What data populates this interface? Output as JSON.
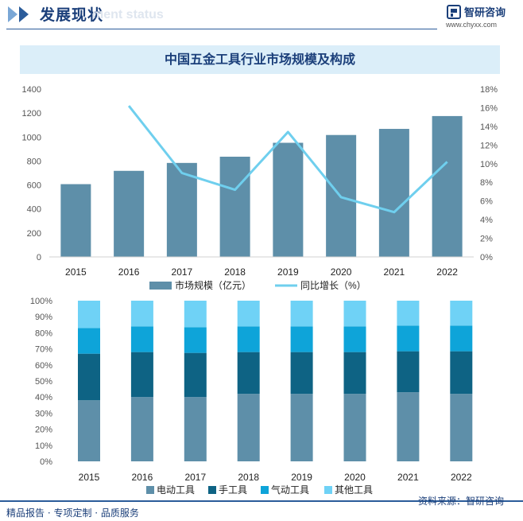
{
  "header": {
    "section_title": "发展现状",
    "section_subtitle_ghost": "ment status",
    "brand_name": "智研咨询",
    "brand_url": "www.chyxx.com"
  },
  "chart_title": "中国五金工具行业市场规模及构成",
  "colors": {
    "bar_market": "#5e8fa9",
    "line_growth": "#6fcfee",
    "electric": "#5e8fa9",
    "hand": "#0e6384",
    "pneumatic": "#0ea4d9",
    "other": "#6fd2f6",
    "title_band": "#dbeef9",
    "brand": "#1b3f7a"
  },
  "chart_data": [
    {
      "type": "bar",
      "categories": [
        "2015",
        "2016",
        "2017",
        "2018",
        "2019",
        "2020",
        "2021",
        "2022"
      ],
      "series": [
        {
          "name": "市场规模（亿元）",
          "type": "bar",
          "axis": "left",
          "values": [
            607,
            718,
            784,
            836,
            952,
            1017,
            1068,
            1175
          ]
        },
        {
          "name": "同比增长（%）",
          "type": "line",
          "axis": "right",
          "values": [
            null,
            16.2,
            9.0,
            7.2,
            13.4,
            6.4,
            4.8,
            10.2
          ]
        }
      ],
      "ylim": [
        0,
        1400
      ],
      "yticks": [
        "0",
        "200",
        "400",
        "600",
        "800",
        "1000",
        "1200",
        "1400"
      ],
      "y2lim": [
        0,
        18
      ],
      "y2ticks": [
        "0%",
        "2%",
        "4%",
        "6%",
        "8%",
        "10%",
        "12%",
        "14%",
        "16%",
        "18%"
      ],
      "legend_position": "bottom"
    },
    {
      "type": "bar",
      "stacked": true,
      "categories": [
        "2015",
        "2016",
        "2017",
        "2018",
        "2019",
        "2020",
        "2021",
        "2022"
      ],
      "series": [
        {
          "name": "电动工具",
          "values": [
            38,
            40,
            40,
            42,
            42,
            42,
            43,
            42
          ]
        },
        {
          "name": "手工具",
          "values": [
            29,
            28,
            27.5,
            26,
            26,
            26,
            25.5,
            26.5
          ]
        },
        {
          "name": "气动工具",
          "values": [
            16,
            16,
            16,
            16,
            16,
            16,
            16,
            16
          ]
        },
        {
          "name": "其他工具",
          "values": [
            17,
            16,
            16.5,
            16,
            16,
            16,
            15.5,
            15.5
          ]
        }
      ],
      "ylim": [
        0,
        100
      ],
      "yticks": [
        "0%",
        "10%",
        "20%",
        "30%",
        "40%",
        "50%",
        "60%",
        "70%",
        "80%",
        "90%",
        "100%"
      ],
      "legend_position": "bottom"
    }
  ],
  "footer": {
    "left": "精品报告 · 专项定制 · 品质服务",
    "source": "资料来源：智研咨询"
  }
}
